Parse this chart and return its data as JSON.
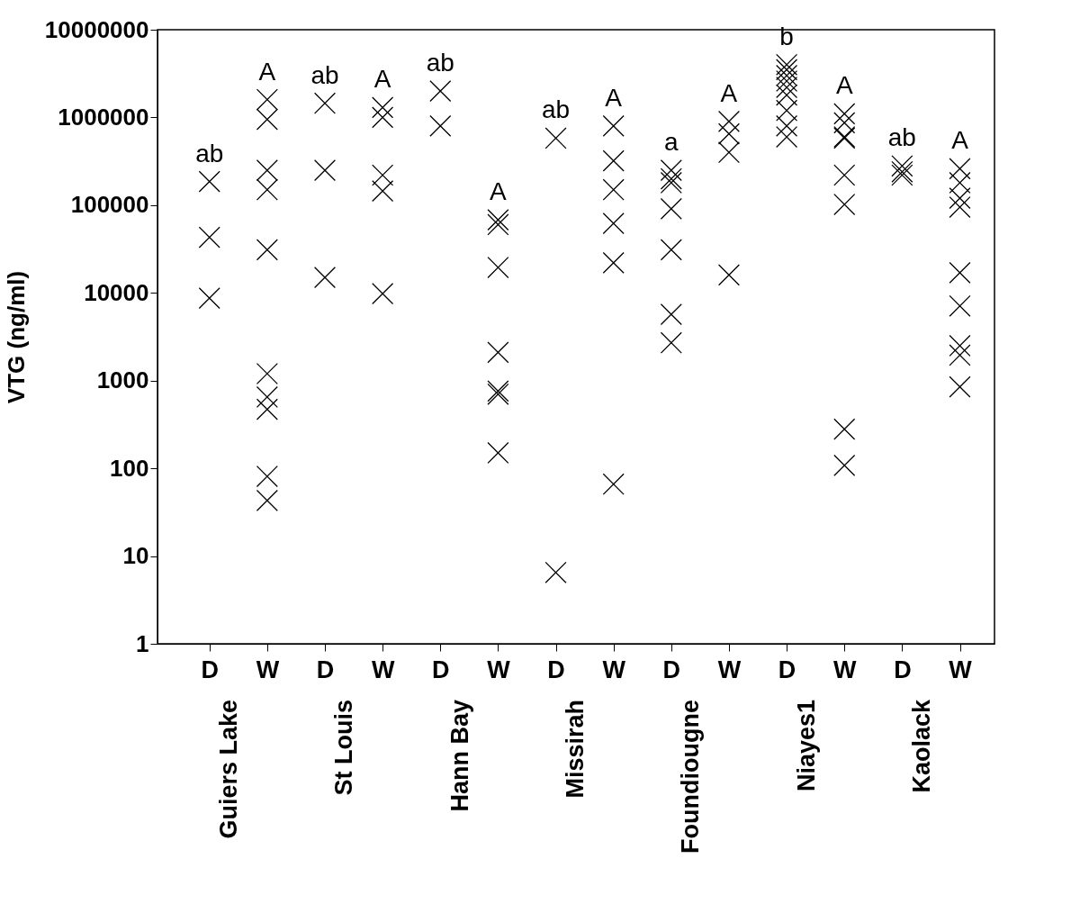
{
  "chart_data": {
    "type": "scatter",
    "ylabel": "VTG (ng/ml)",
    "categories": [
      "D",
      "W",
      "D",
      "W",
      "D",
      "W",
      "D",
      "W",
      "D",
      "W",
      "D",
      "W",
      "D",
      "W"
    ],
    "series": [
      {
        "color": "#000000",
        "values": [
          186000,
          1600000,
          1450000,
          1300000,
          2000000,
          68000,
          580000,
          800000,
          250000,
          900000,
          4000000,
          1100000,
          280000,
          260000
        ]
      },
      {
        "color": "#000000",
        "values": [
          43000,
          950000,
          250000,
          1000000,
          800000,
          60000,
          6.5,
          320000,
          200000,
          650000,
          3500000,
          870000,
          240000,
          180000
        ]
      },
      {
        "color": "#000000",
        "values": [
          8700,
          250000,
          15000,
          220000,
          null,
          19500,
          null,
          150000,
          180000,
          400000,
          3000000,
          600000,
          220000,
          120000
        ]
      },
      {
        "color": "#000000",
        "values": [
          null,
          150000,
          null,
          145000,
          null,
          2100,
          null,
          62000,
          91000,
          16000,
          2600000,
          580000,
          null,
          95000
        ]
      },
      {
        "color": "#000000",
        "values": [
          null,
          31000,
          null,
          9800,
          null,
          760,
          null,
          22000,
          31000,
          null,
          2200000,
          220000,
          null,
          17000
        ]
      },
      {
        "color": "#000000",
        "values": [
          null,
          1200,
          null,
          null,
          null,
          700,
          null,
          66,
          5700,
          null,
          1800000,
          102000,
          null,
          7100
        ]
      },
      {
        "color": "#000000",
        "values": [
          null,
          650,
          null,
          null,
          null,
          150,
          null,
          null,
          2700,
          null,
          1200000,
          280,
          null,
          2500
        ]
      },
      {
        "color": "#000000",
        "values": [
          null,
          470,
          null,
          null,
          null,
          null,
          null,
          null,
          null,
          null,
          800000,
          108,
          null,
          1950
        ]
      },
      {
        "color": "#000000",
        "values": [
          null,
          81,
          null,
          null,
          null,
          null,
          null,
          null,
          null,
          null,
          600000,
          null,
          null,
          850
        ]
      },
      {
        "color": "#000000",
        "values": [
          null,
          43,
          null,
          null,
          null,
          null,
          null,
          null,
          null,
          null,
          null,
          null,
          null,
          null
        ]
      }
    ],
    "annotations": [
      "ab",
      "A",
      "ab",
      "A",
      "ab",
      "A",
      "ab",
      "A",
      "a",
      "A",
      "b",
      "A",
      "ab",
      "A",
      "Guiers Lake",
      "St Louis",
      "Hann Bay",
      "Missirah",
      "Foundiougne",
      "Niayes1",
      "Kaolack"
    ],
    "log": "y",
    "ylim": [
      1,
      10000000
    ],
    "yticks": [
      1,
      10,
      100,
      1000,
      10000,
      100000,
      1000000,
      10000000
    ],
    "marker": "cross",
    "grid": false
  }
}
